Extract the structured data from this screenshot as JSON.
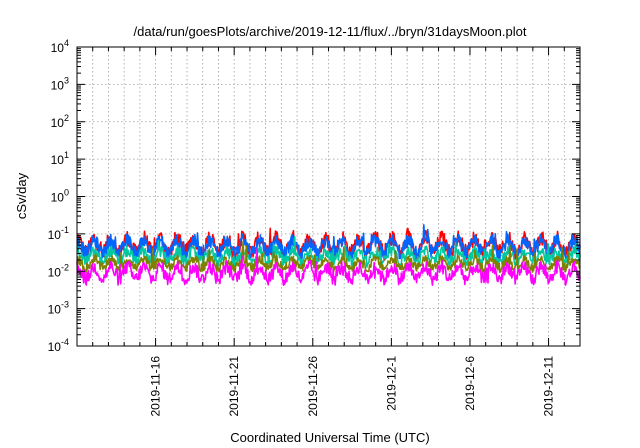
{
  "chart_data": {
    "type": "line",
    "title": "/data/run/goesPlots/archive/2019-12-11/flux/../bryn/31daysMoon.plot",
    "xlabel": "Coordinated Universal Time (UTC)",
    "ylabel": "cSv/day",
    "yscale": "log",
    "ylim": [
      0.0001,
      10000
    ],
    "xlim": [
      "2019-11-11",
      "2019-12-13"
    ],
    "grid": true,
    "legend": "none",
    "x_ticks": [
      "2019-11-16",
      "2019-11-21",
      "2019-11-26",
      "2019-12-1",
      "2019-12-6",
      "2019-12-11"
    ],
    "y_ticks": [
      {
        "value": 0.0001,
        "base": "10",
        "exp": "-4"
      },
      {
        "value": 0.001,
        "base": "10",
        "exp": "-3"
      },
      {
        "value": 0.01,
        "base": "10",
        "exp": "-2"
      },
      {
        "value": 0.1,
        "base": "10",
        "exp": "-1"
      },
      {
        "value": 1,
        "base": "10",
        "exp": "0"
      },
      {
        "value": 10,
        "base": "10",
        "exp": "1"
      },
      {
        "value": 100,
        "base": "10",
        "exp": "2"
      },
      {
        "value": 1000,
        "base": "10",
        "exp": "3"
      },
      {
        "value": 10000,
        "base": "10",
        "exp": "4"
      }
    ],
    "series": [
      {
        "color": "#ff0000",
        "typical": 0.05,
        "spread": 0.35
      },
      {
        "color": "#0066ff",
        "typical": 0.045,
        "spread": 0.3
      },
      {
        "color": "#00c8a0",
        "typical": 0.025,
        "spread": 0.25
      },
      {
        "color": "#808000",
        "typical": 0.016,
        "spread": 0.2
      },
      {
        "color": "#ff00ff",
        "typical": 0.009,
        "spread": 0.3
      }
    ]
  }
}
